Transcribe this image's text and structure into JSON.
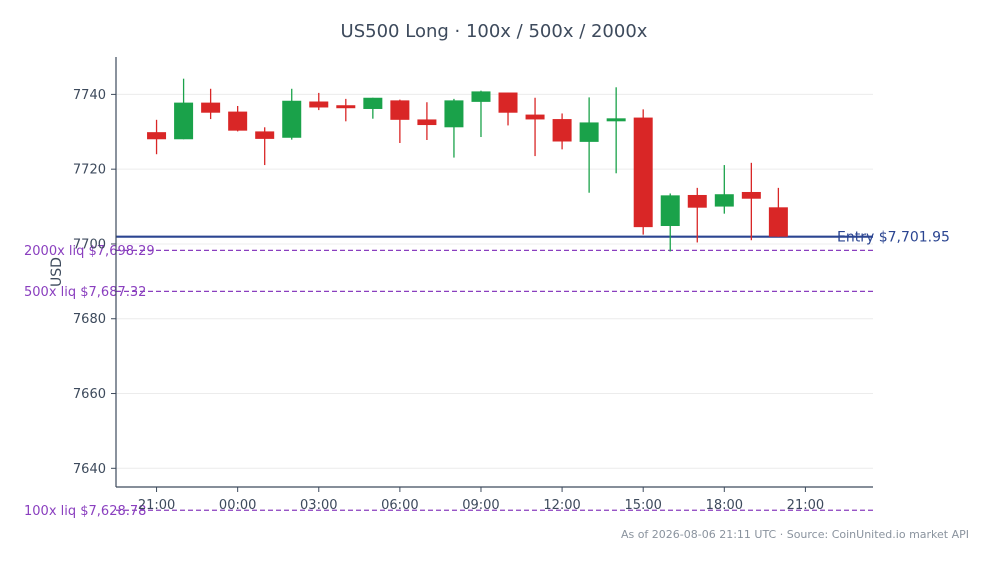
{
  "chart_data": {
    "type": "candlestick",
    "title": "US500 Long · 100x / 500x / 2000x",
    "ylabel": "USD",
    "xlabel": "",
    "ylim": [
      7635,
      7750
    ],
    "y_ticks": [
      7640,
      7660,
      7680,
      7700,
      7720,
      7740
    ],
    "x_ticks": [
      {
        "hour_index": 0,
        "label": "21:00"
      },
      {
        "hour_index": 3,
        "label": "00:00"
      },
      {
        "hour_index": 6,
        "label": "03:00"
      },
      {
        "hour_index": 9,
        "label": "06:00"
      },
      {
        "hour_index": 12,
        "label": "09:00"
      },
      {
        "hour_index": 15,
        "label": "12:00"
      },
      {
        "hour_index": 18,
        "label": "15:00"
      },
      {
        "hour_index": 21,
        "label": "18:00"
      },
      {
        "hour_index": 24,
        "label": "21:00"
      }
    ],
    "x_range": [
      -1.5,
      26.5
    ],
    "grid": "horizontal",
    "colors": {
      "up": "#1aa24a",
      "down": "#d92626",
      "entry": "#2b4591",
      "liq": "#8a3fbf",
      "grid": "#ececec",
      "axis": "#3d4a5c"
    },
    "candles": [
      {
        "o": 7729.9,
        "h": 7733.2,
        "l": 7724.0,
        "c": 7728.0
      },
      {
        "o": 7728.0,
        "h": 7744.2,
        "l": 7728.0,
        "c": 7737.8
      },
      {
        "o": 7737.8,
        "h": 7741.5,
        "l": 7733.4,
        "c": 7735.1
      },
      {
        "o": 7735.4,
        "h": 7736.9,
        "l": 7730.1,
        "c": 7730.3
      },
      {
        "o": 7730.1,
        "h": 7731.2,
        "l": 7721.1,
        "c": 7728.1
      },
      {
        "o": 7728.4,
        "h": 7741.5,
        "l": 7727.9,
        "c": 7738.3
      },
      {
        "o": 7738.1,
        "h": 7740.4,
        "l": 7735.8,
        "c": 7736.5
      },
      {
        "o": 7737.1,
        "h": 7738.8,
        "l": 7732.8,
        "c": 7736.3
      },
      {
        "o": 7736.1,
        "h": 7739.1,
        "l": 7733.5,
        "c": 7739.1
      },
      {
        "o": 7738.4,
        "h": 7738.6,
        "l": 7727.0,
        "c": 7733.2
      },
      {
        "o": 7733.3,
        "h": 7737.9,
        "l": 7727.8,
        "c": 7731.8
      },
      {
        "o": 7731.2,
        "h": 7738.8,
        "l": 7723.1,
        "c": 7738.4
      },
      {
        "o": 7738.0,
        "h": 7741.0,
        "l": 7728.6,
        "c": 7740.8
      },
      {
        "o": 7740.5,
        "h": 7740.5,
        "l": 7731.7,
        "c": 7735.1
      },
      {
        "o": 7734.6,
        "h": 7739.1,
        "l": 7723.5,
        "c": 7733.3
      },
      {
        "o": 7733.4,
        "h": 7734.9,
        "l": 7725.3,
        "c": 7727.4
      },
      {
        "o": 7727.3,
        "h": 7739.2,
        "l": 7713.7,
        "c": 7732.5
      },
      {
        "o": 7732.8,
        "h": 7741.9,
        "l": 7718.9,
        "c": 7733.6
      },
      {
        "o": 7733.8,
        "h": 7736.0,
        "l": 7702.5,
        "c": 7704.5
      },
      {
        "o": 7704.8,
        "h": 7713.5,
        "l": 7698.0,
        "c": 7713.0
      },
      {
        "o": 7713.1,
        "h": 7715.0,
        "l": 7700.4,
        "c": 7709.7
      },
      {
        "o": 7710.0,
        "h": 7721.1,
        "l": 7708.1,
        "c": 7713.3
      },
      {
        "o": 7713.9,
        "h": 7721.7,
        "l": 7701.0,
        "c": 7712.1
      },
      {
        "o": 7709.8,
        "h": 7715.0,
        "l": 7701.9,
        "c": 7701.95
      }
    ],
    "reference_lines": [
      {
        "name": "entry",
        "value": 7701.95,
        "label": "Entry $7,701.95",
        "style": "solid"
      },
      {
        "name": "liq-2000x",
        "value": 7698.29,
        "label": "2000x liq $7,698.29",
        "style": "dashed"
      },
      {
        "name": "liq-500x",
        "value": 7687.32,
        "label": "500x liq $7,687.32",
        "style": "dashed"
      },
      {
        "name": "liq-100x",
        "value": 7628.78,
        "label": "100x liq $7,628.78",
        "style": "dashed"
      }
    ],
    "footer": "As of 2026-08-06 21:11 UTC · Source: CoinUnited.io market API"
  }
}
